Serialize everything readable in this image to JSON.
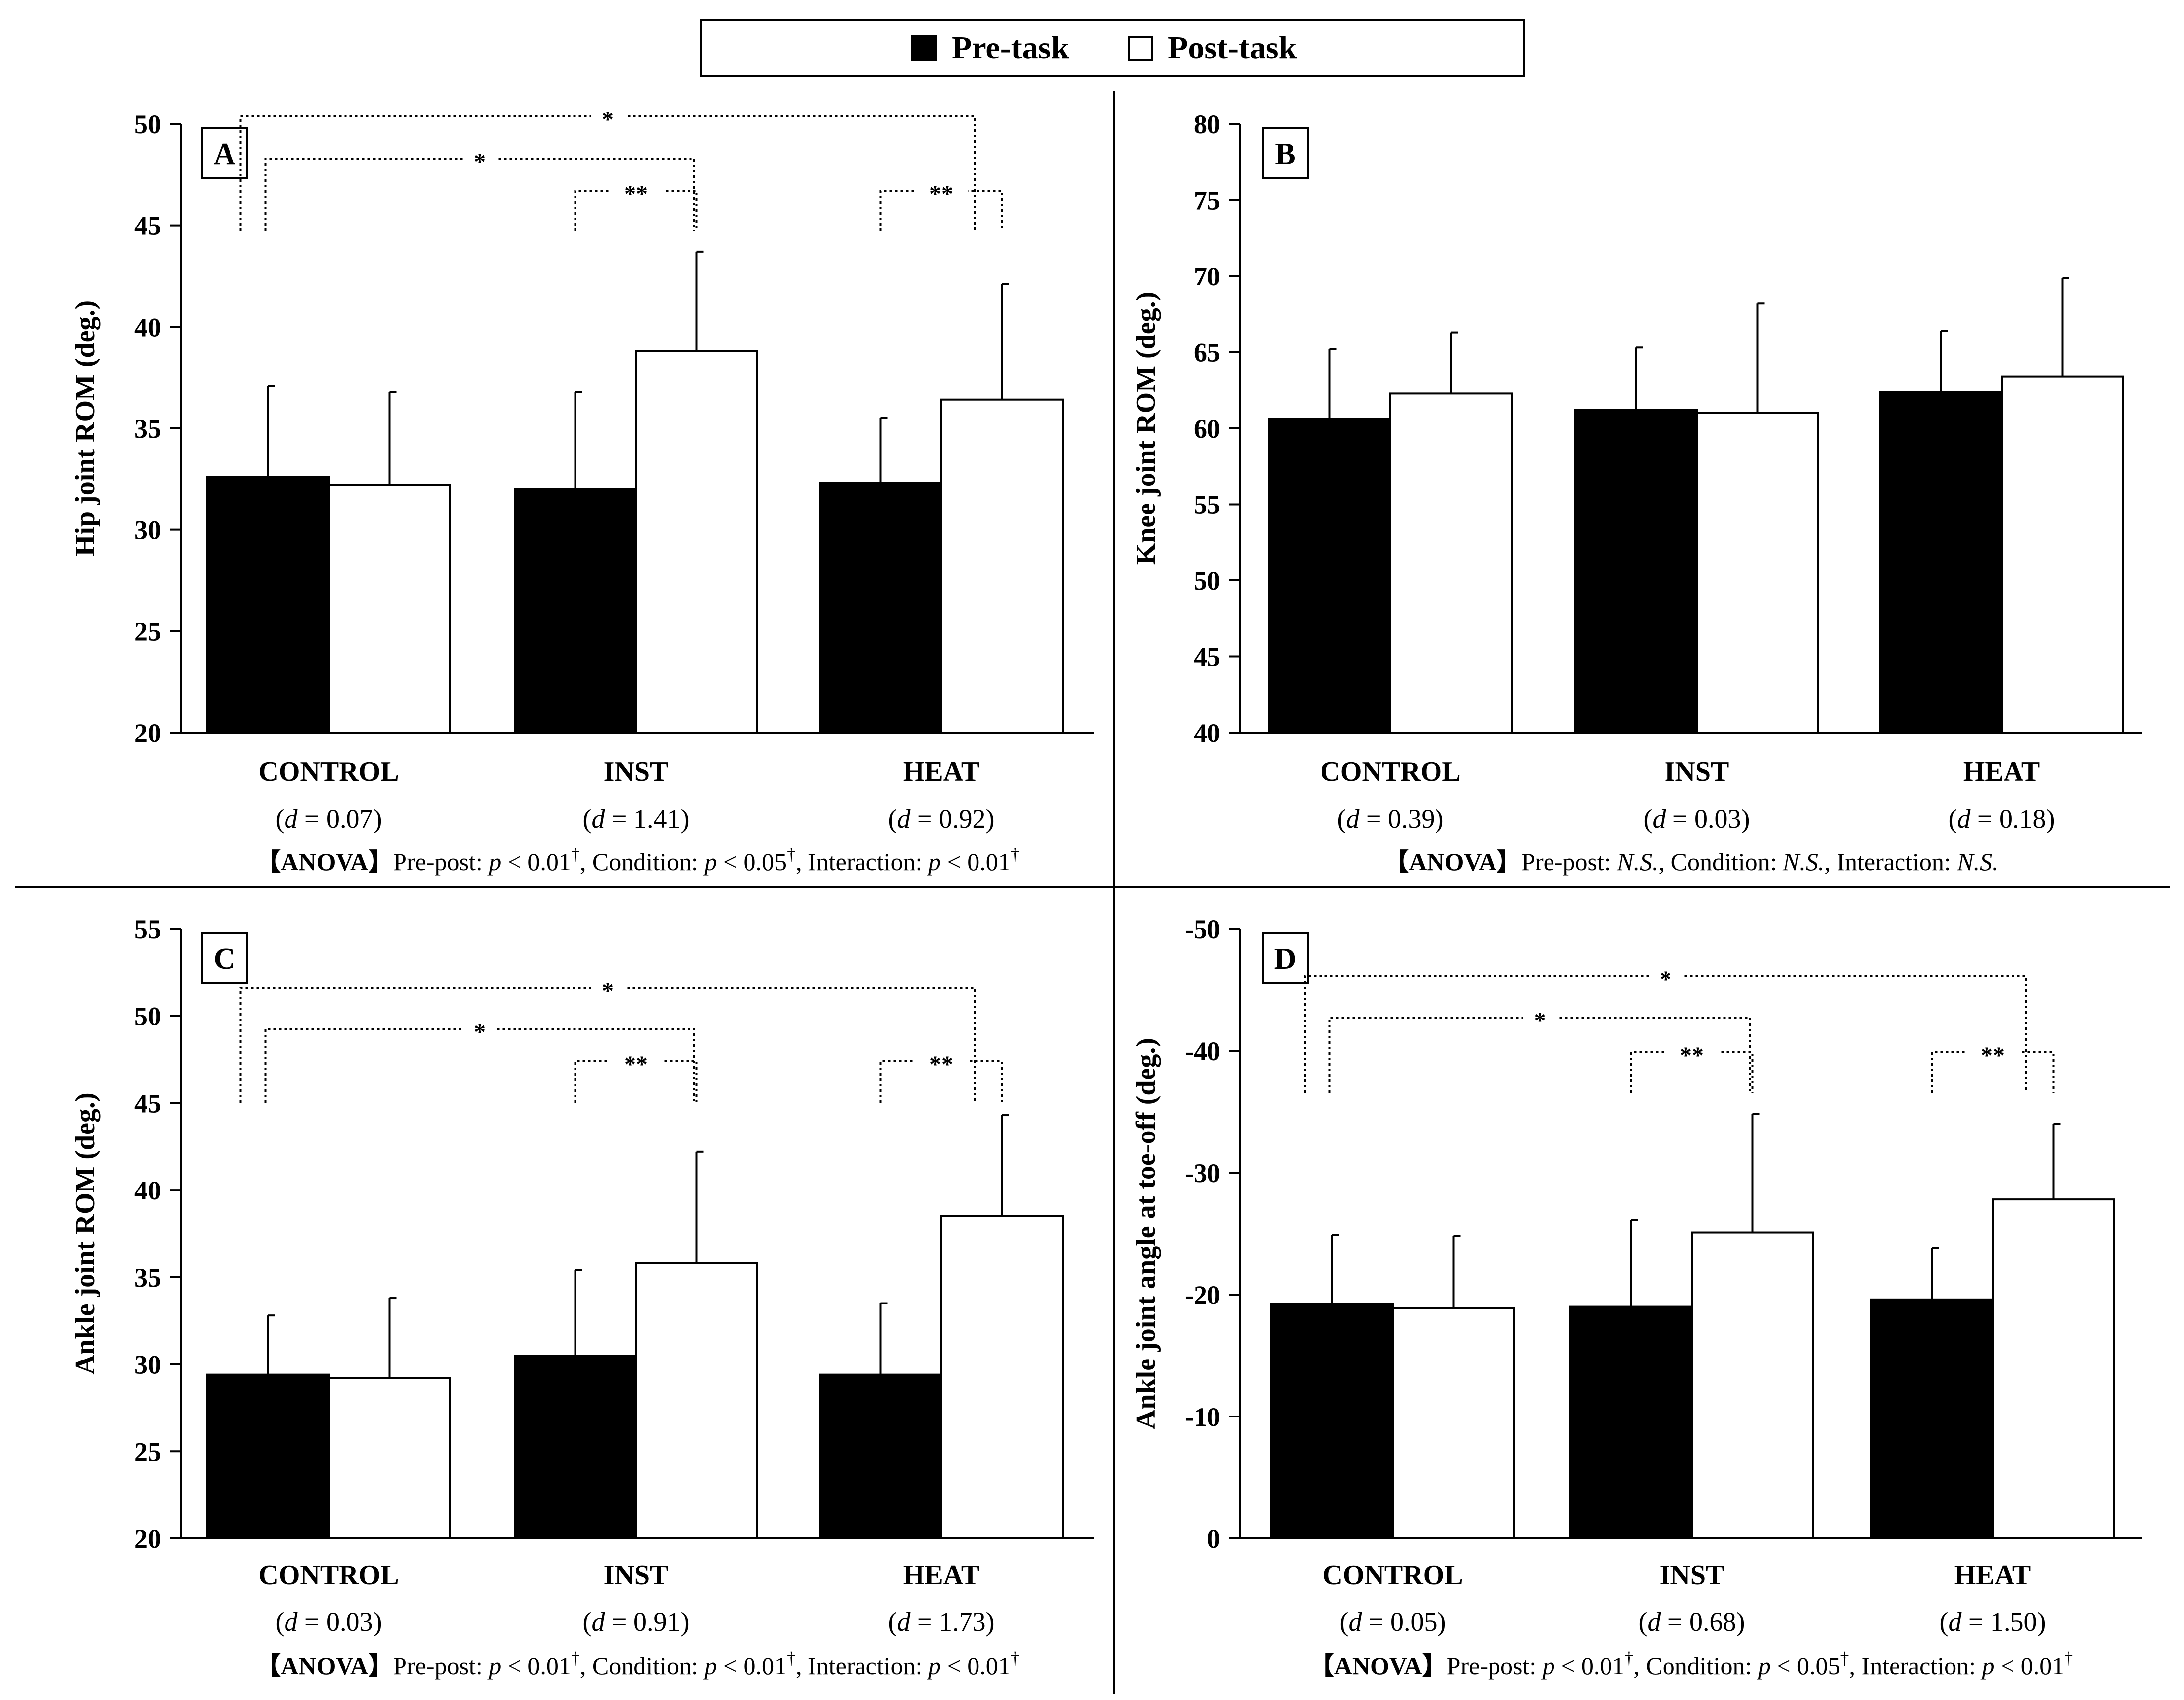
{
  "legend": {
    "items": [
      {
        "label": "Pre-task",
        "color": "#000000"
      },
      {
        "label": "Post-task",
        "color": "#ffffff"
      }
    ]
  },
  "chart_data": [
    {
      "panel": "A",
      "type": "bar",
      "ylabel": "Hip joint ROM (deg.)",
      "ylim": [
        20,
        50
      ],
      "yticks": [
        20,
        25,
        30,
        35,
        40,
        45,
        50
      ],
      "categories": [
        "CONTROL",
        "INST",
        "HEAT"
      ],
      "effect_sizes": [
        "0.07",
        "1.41",
        "0.92"
      ],
      "series": [
        {
          "name": "Pre-task",
          "values": [
            32.6,
            32.0,
            32.3
          ],
          "errors": [
            4.5,
            4.8,
            3.2
          ]
        },
        {
          "name": "Post-task",
          "values": [
            32.2,
            38.8,
            36.4
          ],
          "errors": [
            4.6,
            4.9,
            5.7
          ]
        }
      ],
      "brackets": [
        {
          "from": "CONTROL",
          "to": "HEAT",
          "label": "*"
        },
        {
          "from": "CONTROL",
          "to": "INST",
          "label": "*"
        },
        {
          "from": "INST",
          "within": true,
          "label": "**"
        },
        {
          "from": "HEAT",
          "within": true,
          "label": "**"
        }
      ],
      "anova": {
        "prepost": "p < 0.01",
        "condition": "p < 0.05",
        "interaction": "p < 0.01",
        "dagger": true
      }
    },
    {
      "panel": "B",
      "type": "bar",
      "ylabel": "Knee joint ROM (deg.)",
      "ylim": [
        40,
        80
      ],
      "yticks": [
        40,
        45,
        50,
        55,
        60,
        65,
        70,
        75,
        80
      ],
      "categories": [
        "CONTROL",
        "INST",
        "HEAT"
      ],
      "effect_sizes": [
        "0.39",
        "0.03",
        "0.18"
      ],
      "series": [
        {
          "name": "Pre-task",
          "values": [
            60.6,
            61.2,
            62.4
          ],
          "errors": [
            4.6,
            4.1,
            4.0
          ]
        },
        {
          "name": "Post-task",
          "values": [
            62.3,
            61.0,
            63.4
          ],
          "errors": [
            4.0,
            7.2,
            6.5
          ]
        }
      ],
      "brackets": [],
      "anova": {
        "prepost": "N.S.",
        "condition": "N.S.",
        "interaction": "N.S.",
        "dagger": false
      }
    },
    {
      "panel": "C",
      "type": "bar",
      "ylabel": "Ankle joint ROM (deg.)",
      "ylim": [
        20,
        55
      ],
      "yticks": [
        20,
        25,
        30,
        35,
        40,
        45,
        50,
        55
      ],
      "categories": [
        "CONTROL",
        "INST",
        "HEAT"
      ],
      "effect_sizes": [
        "0.03",
        "0.91",
        "1.73"
      ],
      "series": [
        {
          "name": "Pre-task",
          "values": [
            29.4,
            30.5,
            29.4
          ],
          "errors": [
            3.4,
            4.9,
            4.1
          ]
        },
        {
          "name": "Post-task",
          "values": [
            29.2,
            35.8,
            38.5
          ],
          "errors": [
            4.6,
            6.4,
            5.8
          ]
        }
      ],
      "brackets": [
        {
          "from": "CONTROL",
          "to": "HEAT",
          "label": "*"
        },
        {
          "from": "CONTROL",
          "to": "INST",
          "label": "*"
        },
        {
          "from": "INST",
          "within": true,
          "label": "**"
        },
        {
          "from": "HEAT",
          "within": true,
          "label": "**"
        }
      ],
      "anova": {
        "prepost": "p < 0.01",
        "condition": "p < 0.01",
        "interaction": "p < 0.01",
        "dagger": true
      }
    },
    {
      "panel": "D",
      "type": "bar",
      "ylabel": "Ankle joint angle at toe-off (deg.)",
      "ylim": [
        0,
        -50
      ],
      "yticks": [
        0,
        -10,
        -20,
        -30,
        -40,
        -50
      ],
      "categories": [
        "CONTROL",
        "INST",
        "HEAT"
      ],
      "effect_sizes": [
        "0.05",
        "0.68",
        "1.50"
      ],
      "series": [
        {
          "name": "Pre-task",
          "values": [
            -19.2,
            -19.0,
            -19.6
          ],
          "errors": [
            5.7,
            7.1,
            4.2
          ]
        },
        {
          "name": "Post-task",
          "values": [
            -18.9,
            -25.1,
            -27.8
          ],
          "errors": [
            5.9,
            9.7,
            6.2
          ]
        }
      ],
      "brackets": [
        {
          "from": "CONTROL",
          "to": "HEAT",
          "label": "*"
        },
        {
          "from": "CONTROL",
          "to": "INST",
          "label": "*"
        },
        {
          "from": "INST",
          "within": true,
          "label": "**"
        },
        {
          "from": "HEAT",
          "within": true,
          "label": "**"
        }
      ],
      "anova": {
        "prepost": "p < 0.01",
        "condition": "p < 0.05",
        "interaction": "p < 0.01",
        "dagger": true
      }
    }
  ],
  "text": {
    "anova_tag": "【ANOVA】",
    "prepost_label": "Pre-post:",
    "condition_label": ", Condition:",
    "interaction_label": ", Interaction:",
    "d_symbol": "d",
    "d_equals": " = ",
    "dagger": "†"
  }
}
